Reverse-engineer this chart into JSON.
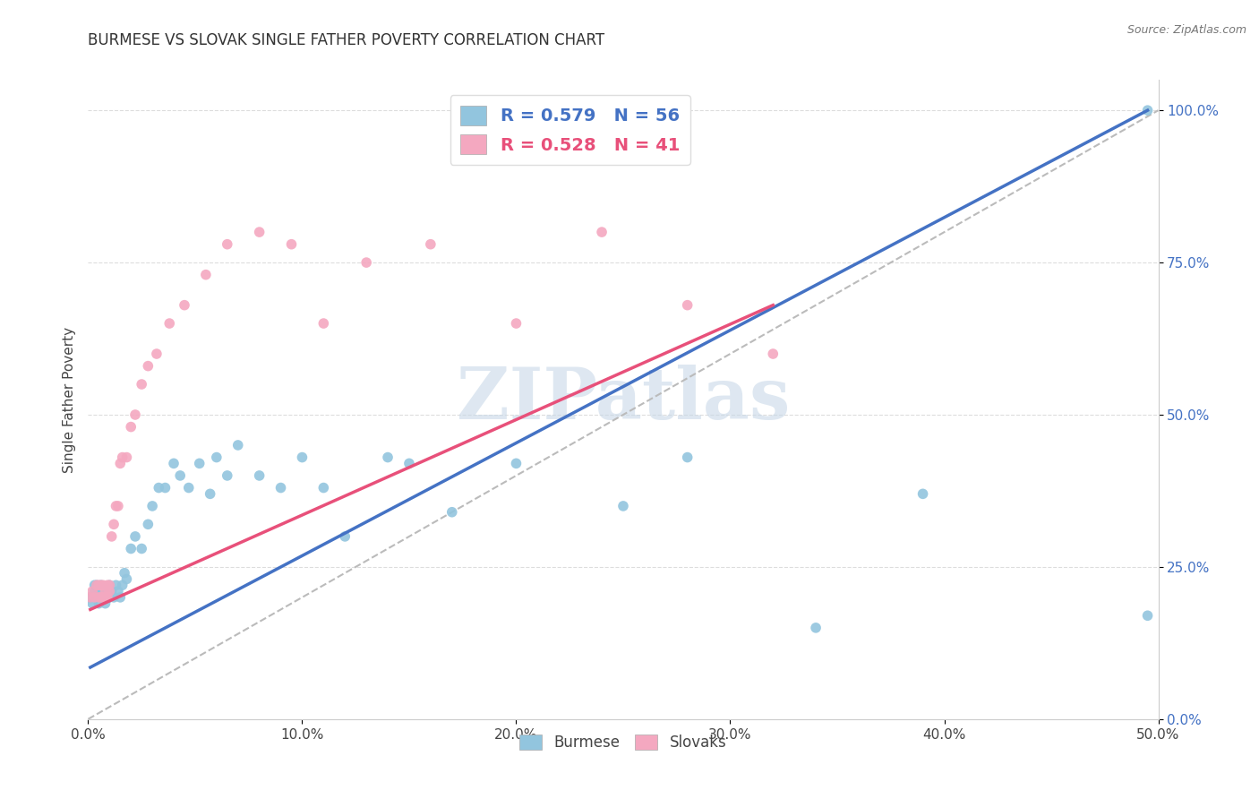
{
  "title": "BURMESE VS SLOVAK SINGLE FATHER POVERTY CORRELATION CHART",
  "source_text": "Source: ZipAtlas.com",
  "ylabel": "Single Father Poverty",
  "xlim": [
    0.0,
    0.5
  ],
  "ylim": [
    0.0,
    1.05
  ],
  "x_ticks": [
    0.0,
    0.1,
    0.2,
    0.3,
    0.4,
    0.5
  ],
  "x_tick_labels": [
    "0.0%",
    "10.0%",
    "20.0%",
    "30.0%",
    "40.0%",
    "50.0%"
  ],
  "y_ticks": [
    0.0,
    0.25,
    0.5,
    0.75,
    1.0
  ],
  "y_tick_labels": [
    "0.0%",
    "25.0%",
    "50.0%",
    "75.0%",
    "100.0%"
  ],
  "burmese_color": "#92c5de",
  "slovak_color": "#f4a8c0",
  "burmese_line_color": "#4472c4",
  "slovak_line_color": "#e8507a",
  "burmese_R": 0.579,
  "burmese_N": 56,
  "slovak_R": 0.528,
  "slovak_N": 41,
  "watermark": "ZIPatlas",
  "watermark_color": "#c8d8e8",
  "legend_text_color": "#4472c4",
  "burmese_x": [
    0.001,
    0.002,
    0.003,
    0.003,
    0.004,
    0.004,
    0.005,
    0.005,
    0.006,
    0.006,
    0.007,
    0.007,
    0.008,
    0.008,
    0.009,
    0.009,
    0.01,
    0.01,
    0.011,
    0.012,
    0.013,
    0.014,
    0.015,
    0.016,
    0.017,
    0.018,
    0.02,
    0.022,
    0.025,
    0.028,
    0.03,
    0.033,
    0.036,
    0.04,
    0.043,
    0.047,
    0.052,
    0.057,
    0.06,
    0.065,
    0.07,
    0.08,
    0.09,
    0.1,
    0.11,
    0.12,
    0.14,
    0.15,
    0.17,
    0.2,
    0.25,
    0.28,
    0.34,
    0.39,
    0.495,
    0.495
  ],
  "burmese_y": [
    0.2,
    0.19,
    0.21,
    0.22,
    0.2,
    0.22,
    0.19,
    0.21,
    0.2,
    0.22,
    0.2,
    0.21,
    0.19,
    0.21,
    0.2,
    0.21,
    0.2,
    0.22,
    0.21,
    0.2,
    0.22,
    0.21,
    0.2,
    0.22,
    0.24,
    0.23,
    0.28,
    0.3,
    0.28,
    0.32,
    0.35,
    0.38,
    0.38,
    0.42,
    0.4,
    0.38,
    0.42,
    0.37,
    0.43,
    0.4,
    0.45,
    0.4,
    0.38,
    0.43,
    0.38,
    0.3,
    0.43,
    0.42,
    0.34,
    0.42,
    0.35,
    0.43,
    0.15,
    0.37,
    1.0,
    0.17
  ],
  "slovak_x": [
    0.001,
    0.002,
    0.003,
    0.004,
    0.005,
    0.005,
    0.006,
    0.006,
    0.007,
    0.007,
    0.008,
    0.008,
    0.009,
    0.009,
    0.01,
    0.01,
    0.011,
    0.012,
    0.013,
    0.014,
    0.015,
    0.016,
    0.018,
    0.02,
    0.022,
    0.025,
    0.028,
    0.032,
    0.038,
    0.045,
    0.055,
    0.065,
    0.08,
    0.095,
    0.11,
    0.13,
    0.16,
    0.2,
    0.24,
    0.28,
    0.32
  ],
  "slovak_y": [
    0.2,
    0.21,
    0.2,
    0.22,
    0.2,
    0.22,
    0.2,
    0.22,
    0.2,
    0.22,
    0.21,
    0.2,
    0.22,
    0.2,
    0.21,
    0.22,
    0.3,
    0.32,
    0.35,
    0.35,
    0.42,
    0.43,
    0.43,
    0.48,
    0.5,
    0.55,
    0.58,
    0.6,
    0.65,
    0.68,
    0.73,
    0.78,
    0.8,
    0.78,
    0.65,
    0.75,
    0.78,
    0.65,
    0.8,
    0.68,
    0.6
  ],
  "burmese_trend_x": [
    0.001,
    0.495
  ],
  "burmese_trend_y": [
    0.085,
    1.0
  ],
  "slovak_trend_x": [
    0.001,
    0.32
  ],
  "slovak_trend_y": [
    0.18,
    0.68
  ],
  "ref_line_x": [
    0.0,
    0.5
  ],
  "ref_line_y": [
    0.0,
    1.0
  ]
}
